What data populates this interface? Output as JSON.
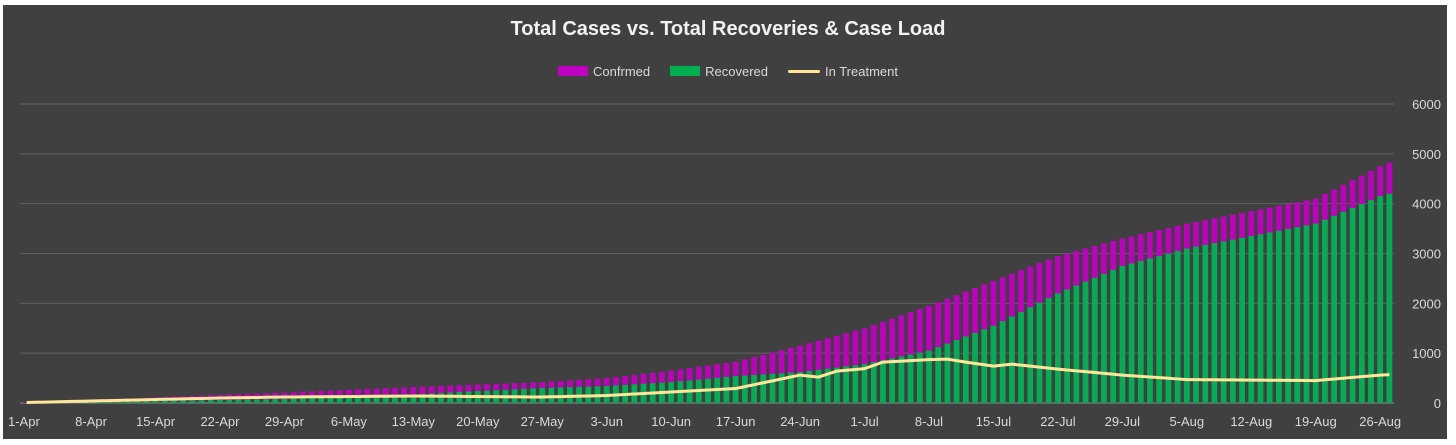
{
  "chart_data": {
    "type": "bar",
    "title": "Total Cases vs. Total Recoveries & Case Load",
    "xlabel": "",
    "ylabel": "",
    "y_axis_side": "right",
    "ylim": [
      0,
      6000
    ],
    "y_ticks": [
      0,
      1000,
      2000,
      3000,
      4000,
      5000,
      6000
    ],
    "grid": true,
    "legend_position": "top-center",
    "x_start": "1-Apr",
    "x_end": "27-Aug",
    "num_days": 149,
    "x_tick_labels": [
      "1-Apr",
      "8-Apr",
      "15-Apr",
      "22-Apr",
      "29-Apr",
      "6-May",
      "13-May",
      "20-May",
      "27-May",
      "3-Jun",
      "10-Jun",
      "17-Jun",
      "24-Jun",
      "1-Jul",
      "8-Jul",
      "15-Jul",
      "22-Jul",
      "29-Jul",
      "5-Aug",
      "12-Aug",
      "19-Aug",
      "26-Aug"
    ],
    "x_tick_indices": [
      0,
      7,
      14,
      21,
      28,
      35,
      42,
      49,
      56,
      63,
      70,
      77,
      84,
      91,
      98,
      105,
      112,
      119,
      126,
      133,
      140,
      147
    ],
    "series": [
      {
        "name": "Confrmed",
        "type": "bar",
        "color": "#c000c0",
        "anchor_days": [
          0,
          7,
          14,
          21,
          28,
          35,
          42,
          49,
          56,
          63,
          70,
          77,
          84,
          91,
          98,
          105,
          112,
          119,
          126,
          133,
          140,
          147,
          148
        ],
        "anchor_values": [
          10,
          60,
          110,
          165,
          210,
          265,
          320,
          370,
          420,
          500,
          650,
          830,
          1150,
          1500,
          1950,
          2450,
          2950,
          3300,
          3600,
          3850,
          4100,
          4750,
          4820
        ]
      },
      {
        "name": "Recovered",
        "type": "bar",
        "color": "#00b050",
        "anchor_days": [
          0,
          7,
          14,
          21,
          28,
          35,
          42,
          49,
          56,
          63,
          70,
          77,
          84,
          91,
          98,
          105,
          112,
          119,
          126,
          133,
          140,
          147,
          148
        ],
        "anchor_values": [
          0,
          20,
          40,
          60,
          80,
          120,
          170,
          240,
          300,
          340,
          420,
          540,
          620,
          780,
          1050,
          1550,
          2200,
          2750,
          3100,
          3350,
          3600,
          4150,
          4200
        ]
      },
      {
        "name": "In Treatment",
        "type": "line",
        "color": "#ffe699",
        "anchor_days": [
          0,
          7,
          14,
          21,
          28,
          35,
          42,
          49,
          56,
          63,
          70,
          77,
          84,
          86,
          88,
          91,
          93,
          96,
          98,
          100,
          102,
          105,
          107,
          112,
          119,
          126,
          133,
          140,
          147,
          148
        ],
        "anchor_values": [
          10,
          40,
          70,
          100,
          120,
          130,
          140,
          130,
          120,
          150,
          220,
          290,
          560,
          520,
          640,
          690,
          820,
          850,
          870,
          880,
          820,
          740,
          780,
          680,
          560,
          470,
          460,
          450,
          560,
          570
        ]
      }
    ]
  }
}
